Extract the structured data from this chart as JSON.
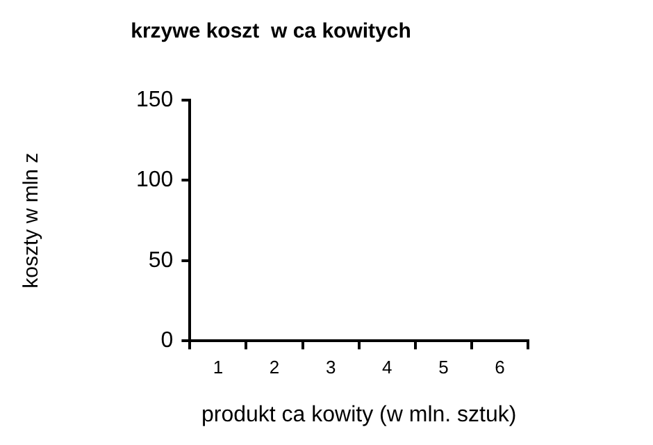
{
  "chart_data": {
    "type": "line",
    "title": "krzywe koszt  w ca kowitych",
    "xlabel": "produkt ca kowity (w mln. sztuk)",
    "ylabel": "koszty w mln z",
    "categories": [
      "1",
      "2",
      "3",
      "4",
      "5",
      "6"
    ],
    "series": [
      {
        "values": [
          null,
          null,
          null,
          null,
          null,
          null
        ]
      }
    ],
    "ylim": [
      0,
      150
    ],
    "yticks": [
      0,
      50,
      100,
      150
    ],
    "grid": false,
    "legend": false
  }
}
